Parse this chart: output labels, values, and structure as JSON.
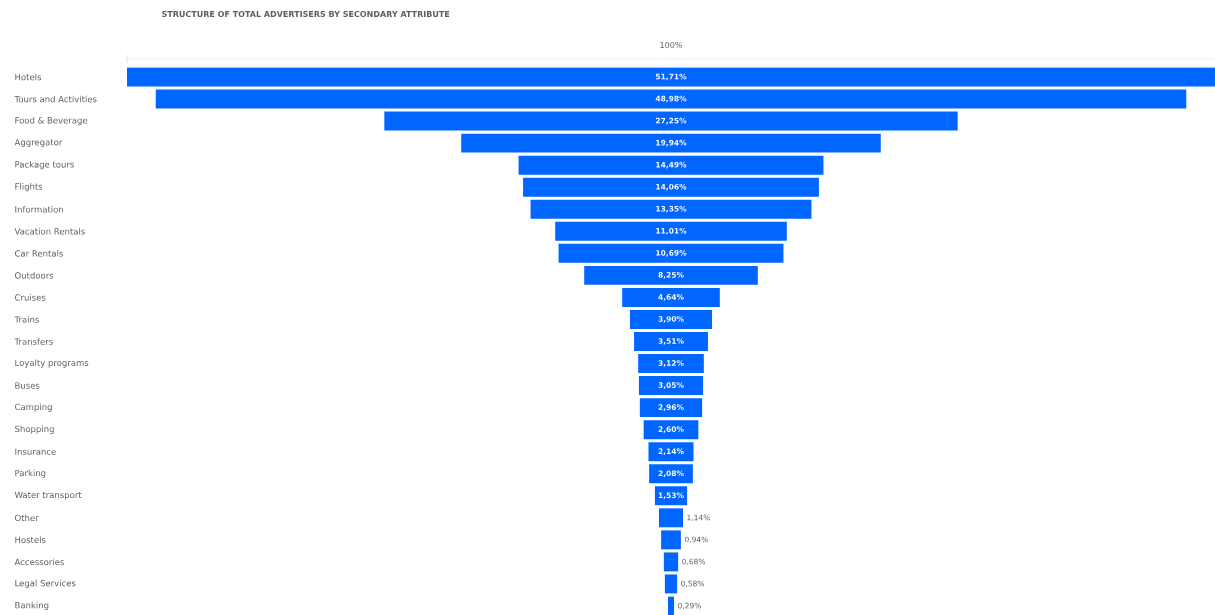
{
  "chart_data": {
    "type": "other",
    "title": "STRUCTURE OF TOTAL ADVERTISERS BY SECONDARY ATTRIBUTE",
    "categories": [
      "Hotels",
      "Tours and Activities",
      "Food & Beverage",
      "Aggregator",
      "Package tours",
      "Flights",
      "Information",
      "Vacation Rentals",
      "Car Rentals",
      "Outdoors",
      "Cruises",
      "Trains",
      "Transfers",
      "Loyalty programs",
      "Buses",
      "Camping",
      "Shopping",
      "Insurance",
      "Parking",
      "Water transport",
      "Other",
      "Hostels",
      "Accessories",
      "Legal Services",
      "Banking"
    ],
    "values": [
      51.71,
      48.98,
      27.25,
      19.94,
      14.49,
      14.06,
      13.35,
      11.01,
      10.69,
      8.25,
      4.64,
      3.9,
      3.51,
      3.12,
      3.05,
      2.96,
      2.6,
      2.14,
      2.08,
      1.53,
      1.14,
      0.94,
      0.68,
      0.58,
      0.29
    ],
    "value_labels": [
      "51,71%",
      "48,98%",
      "27,25%",
      "19,94%",
      "14,49%",
      "14,06%",
      "13,35%",
      "11,01%",
      "10,69%",
      "8,25%",
      "4,64%",
      "3,90%",
      "3,51%",
      "3,12%",
      "3,05%",
      "2,96%",
      "2,60%",
      "2,14%",
      "2,08%",
      "1,53%",
      "1,14%",
      "0,94%",
      "0,68%",
      "0,58%",
      "0,29%"
    ],
    "color": "#0066ff",
    "annotations": [
      "100%"
    ]
  }
}
